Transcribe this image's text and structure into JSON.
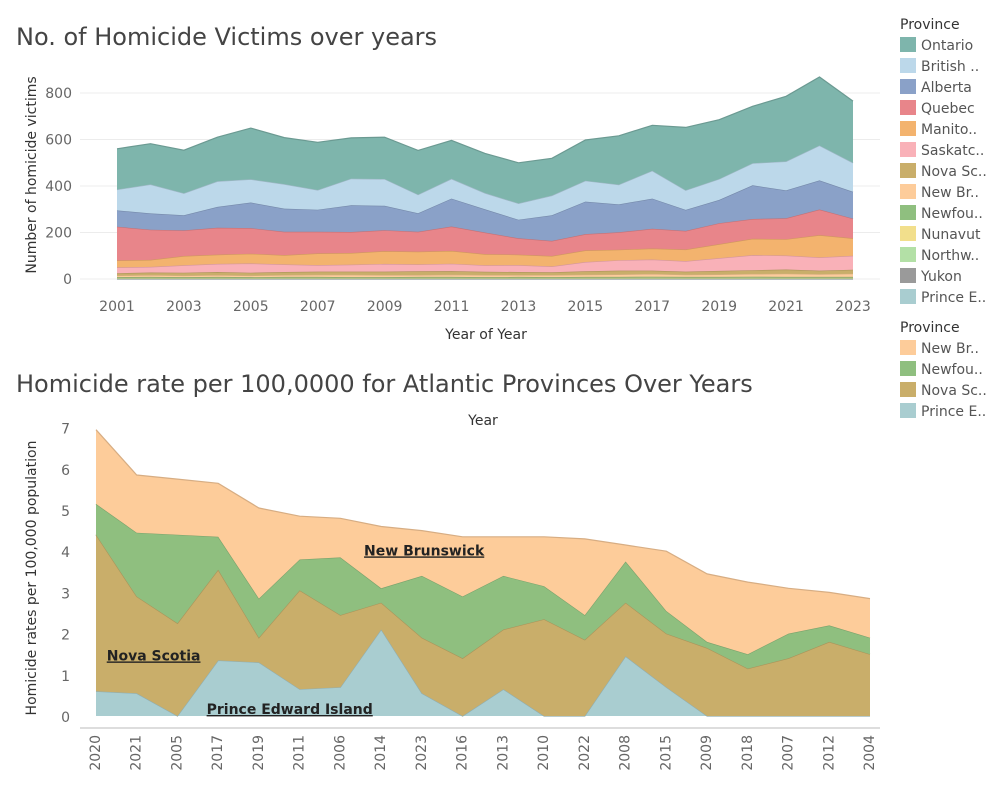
{
  "chart_data": [
    {
      "type": "area",
      "stacked": true,
      "title": "No. of Homicide Victims over years",
      "xlabel": "Year of Year",
      "ylabel": "Number of homicide victims",
      "ylim": [
        0,
        900
      ],
      "yticks": [
        0,
        200,
        400,
        600,
        800
      ],
      "xticks": [
        2001,
        2003,
        2005,
        2007,
        2009,
        2011,
        2013,
        2015,
        2017,
        2019,
        2021,
        2023
      ],
      "grid": true,
      "legend": "right",
      "legend_title": "Province",
      "x": [
        2001,
        2002,
        2003,
        2004,
        2005,
        2006,
        2007,
        2008,
        2009,
        2010,
        2011,
        2012,
        2013,
        2014,
        2015,
        2016,
        2017,
        2018,
        2019,
        2020,
        2021,
        2022,
        2023
      ],
      "series": [
        {
          "name": "Prince E..",
          "legend_label": "Prince E..",
          "color": "#a9cdd0",
          "values": [
            0,
            0,
            0,
            0,
            0,
            0,
            0,
            0,
            0,
            0,
            0,
            0,
            0,
            0,
            0,
            0,
            0,
            0,
            0,
            0,
            0,
            0,
            0
          ]
        },
        {
          "name": "Yukon",
          "legend_label": "Yukon",
          "color": "#9a9a9a",
          "values": [
            1,
            1,
            1,
            1,
            1,
            1,
            1,
            1,
            1,
            1,
            1,
            1,
            1,
            1,
            1,
            1,
            1,
            1,
            1,
            1,
            1,
            1,
            1
          ]
        },
        {
          "name": "Northw..",
          "legend_label": "Northw..",
          "color": "#b3e0a6",
          "values": [
            2,
            2,
            2,
            2,
            2,
            2,
            2,
            2,
            2,
            2,
            2,
            2,
            2,
            2,
            2,
            2,
            2,
            2,
            2,
            2,
            2,
            2,
            2
          ]
        },
        {
          "name": "Nunavut",
          "legend_label": "Nunavut",
          "color": "#f2df8c",
          "values": [
            3,
            3,
            3,
            3,
            3,
            3,
            3,
            3,
            3,
            3,
            3,
            3,
            3,
            3,
            3,
            3,
            3,
            3,
            3,
            3,
            3,
            3,
            3
          ]
        },
        {
          "name": "Newfou..",
          "legend_label": "Newfou..",
          "color": "#8fbf7f",
          "values": [
            2,
            3,
            2,
            3,
            2,
            3,
            3,
            2,
            2,
            3,
            3,
            2,
            3,
            2,
            3,
            3,
            4,
            3,
            3,
            4,
            3,
            3,
            3
          ]
        },
        {
          "name": "New Br..",
          "legend_label": "New Br..",
          "color": "#fdcc9a",
          "values": [
            7,
            8,
            7,
            8,
            7,
            8,
            9,
            10,
            9,
            8,
            10,
            9,
            8,
            9,
            10,
            11,
            12,
            10,
            11,
            12,
            14,
            12,
            14
          ]
        },
        {
          "name": "Nova Sc..",
          "legend_label": "Nova Sc..",
          "color": "#c9ae6a",
          "values": [
            10,
            11,
            12,
            13,
            12,
            13,
            14,
            14,
            15,
            16,
            15,
            14,
            13,
            12,
            14,
            16,
            14,
            13,
            15,
            16,
            18,
            15,
            17
          ]
        },
        {
          "name": "Saskatc..",
          "legend_label": "Saskatc..",
          "color": "#f9b1b8",
          "values": [
            25,
            24,
            32,
            35,
            40,
            33,
            28,
            30,
            33,
            30,
            32,
            28,
            30,
            25,
            40,
            45,
            48,
            45,
            55,
            65,
            60,
            57,
            60
          ]
        },
        {
          "name": "Manito..",
          "legend_label": "Manito..",
          "color": "#f3b36e",
          "values": [
            30,
            30,
            40,
            40,
            42,
            40,
            50,
            50,
            55,
            55,
            55,
            48,
            45,
            45,
            50,
            45,
            47,
            50,
            60,
            70,
            70,
            96,
            75
          ]
        },
        {
          "name": "Quebec",
          "legend_label": "Quebec",
          "color": "#e8858a",
          "values": [
            145,
            130,
            110,
            115,
            110,
            100,
            93,
            90,
            90,
            85,
            105,
            93,
            70,
            65,
            70,
            75,
            85,
            80,
            90,
            85,
            90,
            110,
            85
          ]
        },
        {
          "name": "Alberta",
          "legend_label": "Alberta",
          "color": "#8aa1c8",
          "values": [
            70,
            70,
            65,
            90,
            110,
            100,
            95,
            115,
            105,
            80,
            120,
            100,
            80,
            110,
            140,
            120,
            130,
            90,
            100,
            145,
            120,
            125,
            115
          ]
        },
        {
          "name": "British ..",
          "legend_label": "British ..",
          "color": "#bcd8ea",
          "values": [
            90,
            125,
            95,
            110,
            100,
            105,
            85,
            115,
            115,
            80,
            85,
            70,
            70,
            85,
            90,
            85,
            120,
            85,
            90,
            95,
            125,
            150,
            125
          ]
        },
        {
          "name": "Ontario",
          "legend_label": "Ontario",
          "color": "#7eb5ac",
          "values": [
            175,
            175,
            185,
            190,
            220,
            200,
            205,
            175,
            180,
            190,
            165,
            170,
            175,
            160,
            175,
            210,
            195,
            270,
            255,
            245,
            280,
            295,
            265
          ]
        }
      ],
      "legend_order": [
        "Ontario",
        "British ..",
        "Alberta",
        "Quebec",
        "Manito..",
        "Saskatc..",
        "Nova Sc..",
        "New Br..",
        "Newfou..",
        "Nunavut",
        "Northw..",
        "Yukon",
        "Prince E.."
      ]
    },
    {
      "type": "area",
      "stacked": true,
      "title": "Homicide rate per 100,0000 for Atlantic Provinces Over Years",
      "top_axis_label": "Year",
      "ylabel": "Homicide rates per 100,000 population",
      "ylim": [
        0,
        7.2
      ],
      "yticks": [
        0,
        1,
        2,
        3,
        4,
        5,
        6,
        7
      ],
      "legend": "right",
      "legend_title": "Province",
      "categories": [
        "2020",
        "2021",
        "2005",
        "2017",
        "2019",
        "2011",
        "2006",
        "2014",
        "2023",
        "2016",
        "2013",
        "2010",
        "2022",
        "2008",
        "2015",
        "2009",
        "2018",
        "2007",
        "2012",
        "2004"
      ],
      "series": [
        {
          "name": "Prince Edward Island",
          "legend_label": "Prince E..",
          "color": "#a9cdd0",
          "values": [
            0.6,
            0.55,
            0.0,
            1.35,
            1.3,
            0.65,
            0.7,
            2.1,
            0.55,
            0.0,
            0.65,
            0.0,
            0.0,
            1.45,
            0.7,
            0.0,
            0.0,
            0.0,
            0.0,
            0.0
          ]
        },
        {
          "name": "Nova Scotia",
          "legend_label": "Nova Sc..",
          "color": "#c9ae6a",
          "values": [
            3.8,
            2.35,
            2.25,
            2.2,
            0.6,
            2.4,
            1.75,
            0.65,
            1.35,
            1.4,
            1.45,
            2.35,
            1.85,
            1.3,
            1.3,
            1.65,
            1.15,
            1.4,
            1.8,
            1.5
          ]
        },
        {
          "name": "Newfoundland",
          "legend_label": "Newfou..",
          "color": "#8fbf7f",
          "values": [
            0.75,
            1.55,
            2.15,
            0.8,
            0.95,
            0.75,
            1.4,
            0.35,
            1.5,
            1.5,
            1.3,
            0.8,
            0.6,
            1.0,
            0.55,
            0.15,
            0.35,
            0.6,
            0.4,
            0.4
          ]
        },
        {
          "name": "New Brunswick",
          "legend_label": "New Br..",
          "color": "#fdcc9a",
          "values": [
            1.8,
            1.4,
            1.35,
            1.3,
            2.2,
            1.05,
            0.95,
            1.5,
            1.1,
            1.45,
            0.95,
            1.2,
            1.85,
            0.4,
            1.45,
            1.65,
            1.75,
            1.1,
            0.8,
            0.95
          ]
        }
      ],
      "legend_order": [
        "New Br..",
        "Newfou..",
        "Nova Sc..",
        "Prince E.."
      ],
      "annotations": [
        {
          "text": "New Brunswick",
          "at_category": "2014",
          "at_value": 3.85
        },
        {
          "text": "Nova Scotia",
          "at_category": "2021",
          "at_value": 1.3
        },
        {
          "text": "Prince Edward Island",
          "at_category": "2011",
          "at_value": 0.0
        }
      ]
    }
  ]
}
